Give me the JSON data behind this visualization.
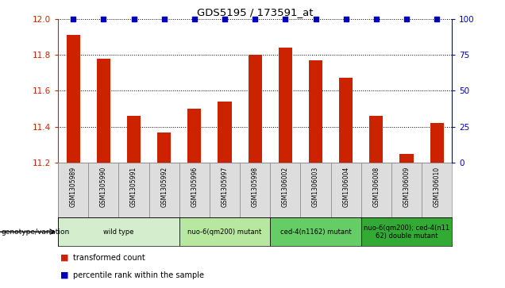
{
  "title": "GDS5195 / 173591_at",
  "samples": [
    "GSM1305989",
    "GSM1305990",
    "GSM1305991",
    "GSM1305992",
    "GSM1305996",
    "GSM1305997",
    "GSM1305998",
    "GSM1306002",
    "GSM1306003",
    "GSM1306004",
    "GSM1306008",
    "GSM1306009",
    "GSM1306010"
  ],
  "red_values": [
    11.91,
    11.78,
    11.46,
    11.37,
    11.5,
    11.54,
    11.8,
    11.84,
    11.77,
    11.67,
    11.46,
    11.25,
    11.42
  ],
  "blue_values": [
    100,
    100,
    100,
    100,
    100,
    100,
    100,
    100,
    100,
    100,
    100,
    100,
    100
  ],
  "ylim_left": [
    11.2,
    12.0
  ],
  "ylim_right": [
    0,
    100
  ],
  "yticks_left": [
    11.2,
    11.4,
    11.6,
    11.8,
    12.0
  ],
  "yticks_right": [
    0,
    25,
    50,
    75,
    100
  ],
  "groups": [
    {
      "label": "wild type",
      "start": 0,
      "end": 3,
      "color": "#d4edcc"
    },
    {
      "label": "nuo-6(qm200) mutant",
      "start": 4,
      "end": 6,
      "color": "#b8e8a0"
    },
    {
      "label": "ced-4(n1162) mutant",
      "start": 7,
      "end": 9,
      "color": "#66cc66"
    },
    {
      "label": "nuo-6(qm200); ced-4(n11\n62) double mutant",
      "start": 10,
      "end": 12,
      "color": "#33aa33"
    }
  ],
  "bar_color": "#cc2200",
  "dot_color": "#0000bb",
  "legend_transformed": "transformed count",
  "legend_percentile": "percentile rank within the sample",
  "bar_width": 0.45,
  "group_arrow_label": "genotype/variation",
  "sample_bg": "#cccccc",
  "sample_cell_bg": "#dddddd"
}
